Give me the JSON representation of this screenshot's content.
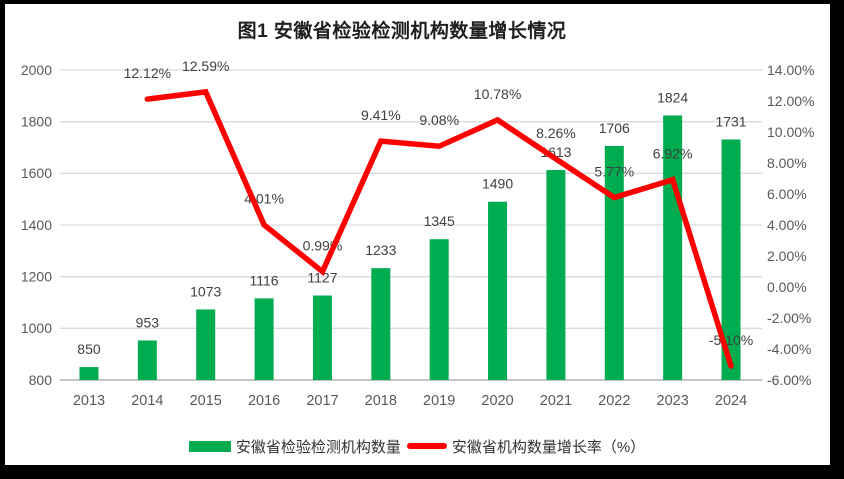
{
  "title": "图1 安徽省检验检测机构数量增长情况",
  "colors": {
    "bar": "#00AC50",
    "line": "#FF0000",
    "grid": "#DADADA",
    "axis_line": "#C6C6C6",
    "tick_text": "#595959",
    "data_label": "#404040",
    "frame": "#000000",
    "background": "#FFFFFF"
  },
  "legend": {
    "bar_label": "安徽省检验检测机构数量",
    "line_label": "安徽省机构数量增长率（%）"
  },
  "chart_data": {
    "type": "bar+line",
    "title": "图1 安徽省检验检测机构数量增长情况",
    "categories": [
      "2013",
      "2014",
      "2015",
      "2016",
      "2017",
      "2018",
      "2019",
      "2020",
      "2021",
      "2022",
      "2023",
      "2024"
    ],
    "series": [
      {
        "name": "安徽省检验检测机构数量",
        "type": "bar",
        "axis": "left",
        "color": "#00AC50",
        "values": [
          850,
          953,
          1073,
          1116,
          1127,
          1233,
          1345,
          1490,
          1613,
          1706,
          1824,
          1731
        ],
        "labels": [
          "850",
          "953",
          "1073",
          "1116",
          "1127",
          "1233",
          "1345",
          "1490",
          "1613",
          "1706",
          "1824",
          "1731"
        ]
      },
      {
        "name": "安徽省机构数量增长率（%）",
        "type": "line",
        "axis": "right",
        "color": "#FF0000",
        "values": [
          null,
          12.12,
          12.59,
          4.01,
          0.99,
          9.41,
          9.08,
          10.78,
          8.26,
          5.77,
          6.92,
          -5.1
        ],
        "labels": [
          null,
          "12.12%",
          "12.59%",
          "4.01%",
          "0.99%",
          "9.41%",
          "9.08%",
          "10.78%",
          "8.26%",
          "5.77%",
          "6.92%",
          "-5.10%"
        ]
      }
    ],
    "axes": {
      "left": {
        "min": 800,
        "max": 2000,
        "step": 200,
        "ticks": [
          "800",
          "1000",
          "1200",
          "1400",
          "1600",
          "1800",
          "2000"
        ]
      },
      "right": {
        "min": -6,
        "max": 14,
        "step": 2,
        "ticks": [
          "-6.00%",
          "-4.00%",
          "-2.00%",
          "0.00%",
          "2.00%",
          "4.00%",
          "6.00%",
          "8.00%",
          "10.00%",
          "12.00%",
          "14.00%"
        ]
      }
    },
    "grid": "horizontal",
    "legend_position": "bottom"
  }
}
